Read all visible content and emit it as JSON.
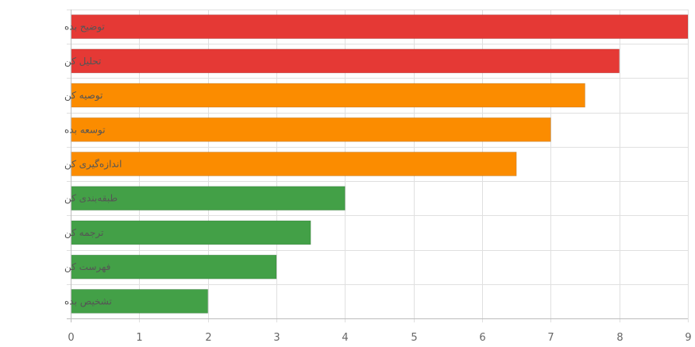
{
  "chart_data": {
    "type": "bar",
    "orientation": "horizontal",
    "title": "",
    "xlabel": "",
    "ylabel": "",
    "xlim": [
      0,
      9
    ],
    "x_ticks": [
      0,
      1,
      2,
      3,
      4,
      5,
      6,
      7,
      8,
      9
    ],
    "grid": true,
    "legend": "none",
    "categories": [
      "توضیح بده",
      "تحلیل کن",
      "توصیه کن",
      "توسعه بده",
      "اندازه‌گیری کن",
      "طبقه‌بندی کن",
      "ترجمه کن",
      "فهرست کن",
      "تشخیص بده"
    ],
    "values": [
      9,
      8,
      7.5,
      7,
      6.5,
      4,
      3.5,
      3,
      2
    ],
    "colors": [
      "#e53935",
      "#e53935",
      "#fb8c00",
      "#fb8c00",
      "#fb8c00",
      "#43a047",
      "#43a047",
      "#43a047",
      "#43a047"
    ]
  }
}
